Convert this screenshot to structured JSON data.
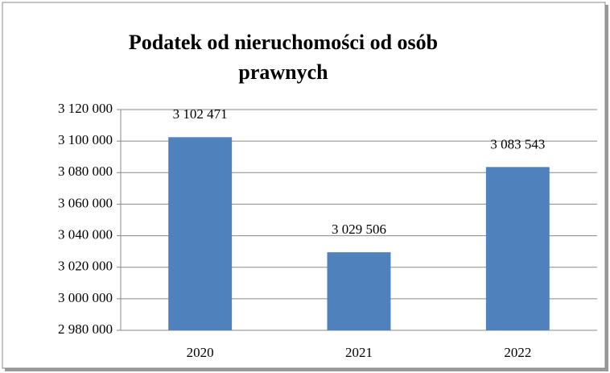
{
  "chart_data": {
    "type": "bar",
    "title": "Podatek od nieruchomości od osób prawnych",
    "categories": [
      "2020",
      "2021",
      "2022"
    ],
    "values": [
      3102471,
      3029506,
      3083543
    ],
    "value_labels": [
      "3 102 471",
      "3 029 506",
      "3 083 543"
    ],
    "color": "#4f81bd",
    "ylim": [
      2980000,
      3120000
    ],
    "yticks": [
      {
        "value": 2980000,
        "label": "2 980 000"
      },
      {
        "value": 3000000,
        "label": "3 000 000"
      },
      {
        "value": 3020000,
        "label": "3 020 000"
      },
      {
        "value": 3040000,
        "label": "3 040 000"
      },
      {
        "value": 3060000,
        "label": "3 060 000"
      },
      {
        "value": 3080000,
        "label": "3 080 000"
      },
      {
        "value": 3100000,
        "label": "3 100 000"
      },
      {
        "value": 3120000,
        "label": "3 120 000"
      }
    ],
    "grid": true
  }
}
